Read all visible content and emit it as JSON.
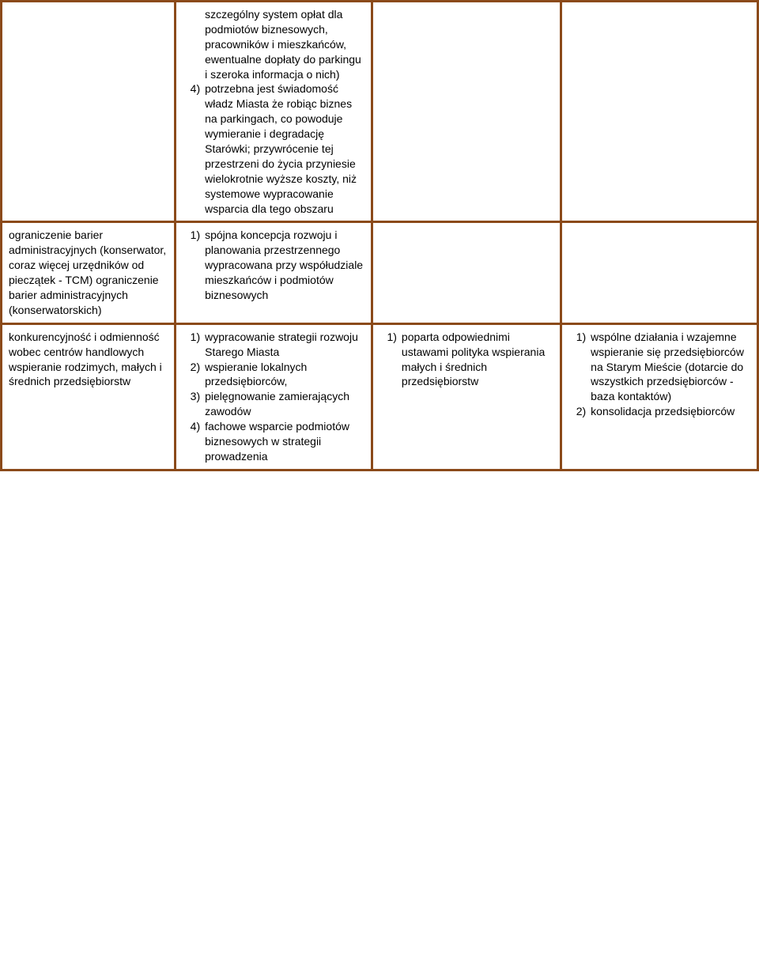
{
  "border_color": "#8b4a1a",
  "background_color": "#ffffff",
  "text_color": "#000000",
  "font_size_pt": 11,
  "rows": [
    {
      "col0_text": "",
      "col1_items": [
        {
          "n": "",
          "t": "szczególny system opłat dla podmiotów biznesowych, pracowników i mieszkańców, ewentualne dopłaty do parkingu i szeroka informacja o nich)"
        },
        {
          "n": "4)",
          "t": "potrzebna jest świadomość władz Miasta że robiąc biznes na parkingach, co powoduje wymieranie i degradację Starówki; przywrócenie tej przestrzeni do życia przyniesie wielokrotnie wyższe koszty, niż systemowe wypracowanie wsparcia dla tego obszaru"
        }
      ],
      "col2_items": [],
      "col3_items": []
    },
    {
      "col0_text": "ograniczenie barier administracyjnych (konserwator, coraz więcej urzędników od pieczątek - TCM) ograniczenie barier administracyjnych (konserwatorskich)",
      "col1_items": [
        {
          "n": "1)",
          "t": "spójna koncepcja rozwoju i planowania przestrzennego wypracowana przy współudziale mieszkańców i podmiotów biznesowych"
        }
      ],
      "col2_items": [],
      "col3_items": []
    },
    {
      "col0_text": "konkurencyjność i odmienność wobec centrów handlowych wspieranie rodzimych, małych i średnich przedsiębiorstw",
      "col1_items": [
        {
          "n": "1)",
          "t": "wypracowanie strategii rozwoju Starego Miasta"
        },
        {
          "n": "2)",
          "t": "wspieranie lokalnych przedsiębiorców,"
        },
        {
          "n": "3)",
          "t": "pielęgnowanie zamierających zawodów"
        },
        {
          "n": "4)",
          "t": "fachowe wsparcie podmiotów biznesowych w strategii prowadzenia"
        }
      ],
      "col2_items": [
        {
          "n": "1)",
          "t": "poparta odpowiednimi ustawami polityka wspierania małych i średnich przedsiębiorstw"
        }
      ],
      "col3_items": [
        {
          "n": "1)",
          "t": "wspólne działania i wzajemne wspieranie się przedsiębiorców na Starym Mieście (dotarcie do wszystkich przedsiębiorców - baza kontaktów)"
        },
        {
          "n": "2)",
          "t": "konsolidacja przedsiębiorców"
        }
      ]
    }
  ]
}
